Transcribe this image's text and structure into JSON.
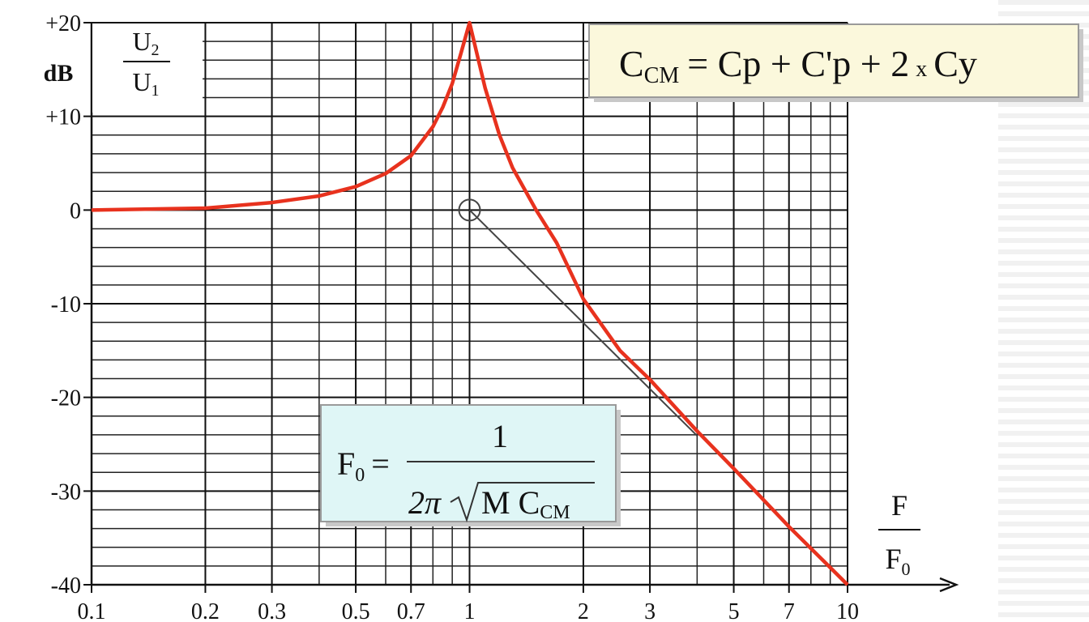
{
  "chart_data": {
    "type": "line",
    "x_scale": "log",
    "xlim": [
      0.1,
      10
    ],
    "ylim": [
      -40,
      20
    ],
    "xticks": [
      0.1,
      0.2,
      0.3,
      0.5,
      0.7,
      1,
      2,
      3,
      5,
      7,
      10
    ],
    "yticks": [
      {
        "value": 20,
        "label": "+20"
      },
      {
        "value": 10,
        "label": "+10"
      },
      0,
      -10,
      -20,
      -30,
      -40
    ],
    "grid": true,
    "minor_grid": true,
    "ylabel": {
      "unit": "dB",
      "top": "U",
      "top_sub": "2",
      "bottom": "U",
      "bottom_sub": "1"
    },
    "xlabel": {
      "top": "F",
      "bottom": "F",
      "bottom_sub": "0"
    },
    "series": [
      {
        "color": "#e8321e",
        "x": [
          0.1,
          0.2,
          0.3,
          0.4,
          0.5,
          0.6,
          0.7,
          0.8,
          0.85,
          0.9,
          0.95,
          1,
          1.05,
          1.1,
          1.2,
          1.3,
          1.5,
          1.7,
          2,
          2.5,
          3,
          4,
          5,
          7,
          10
        ],
        "values": [
          0,
          0.2,
          0.8,
          1.5,
          2.5,
          3.9,
          5.8,
          8.9,
          11,
          13.5,
          16.8,
          20,
          16.4,
          13,
          8,
          4.5,
          0,
          -3.5,
          -9.5,
          -15,
          -18.1,
          -23.6,
          -27.6,
          -33.8,
          -40
        ]
      },
      {
        "color": "#444444",
        "x": [
          1,
          4
        ],
        "values": [
          0,
          -24.1
        ]
      }
    ],
    "annotations": [
      {
        "lhs": "C",
        "lhs_sub": "CM",
        "rhs": "= Cp + C'p + 2",
        "times": "x",
        "end": "Cy"
      },
      {
        "lhs": "F",
        "lhs_sub": "0",
        "eq": "=",
        "numerator": "1",
        "denominator_pre": "2π",
        "denominator": "M C",
        "denominator_sub": "CM"
      }
    ]
  }
}
